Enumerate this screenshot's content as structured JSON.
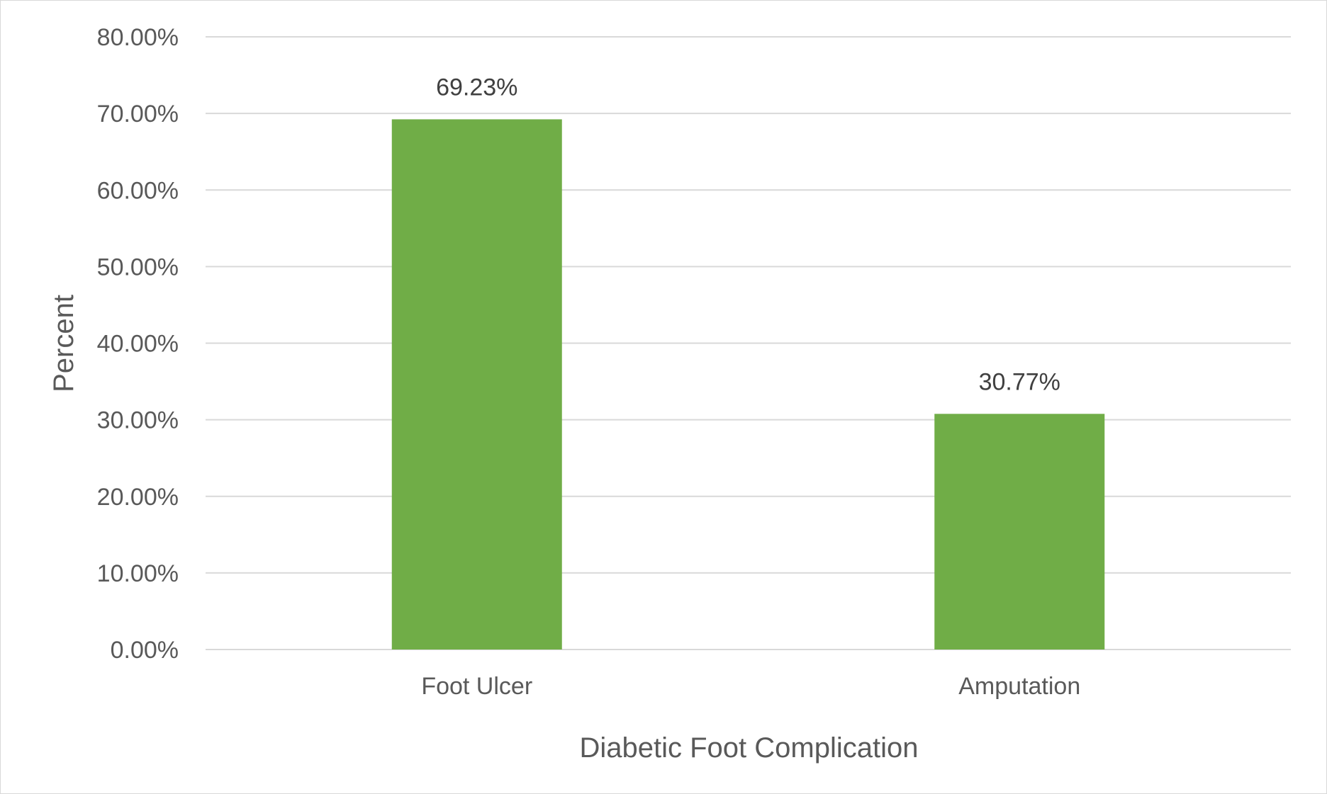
{
  "chart_data": {
    "type": "bar",
    "categories": [
      "Foot Ulcer",
      "Amputation"
    ],
    "values": [
      69.23,
      30.77
    ],
    "data_labels": [
      "69.23%",
      "30.77%"
    ],
    "xlabel": "Diabetic Foot Complication",
    "ylabel": "Percent",
    "ylim": [
      0,
      80
    ],
    "ytick_step": 10,
    "ytick_labels": [
      "0.00%",
      "10.00%",
      "20.00%",
      "30.00%",
      "40.00%",
      "50.00%",
      "60.00%",
      "70.00%",
      "80.00%"
    ],
    "grid": true,
    "legend": "none",
    "bar_color": "#70ad47"
  }
}
